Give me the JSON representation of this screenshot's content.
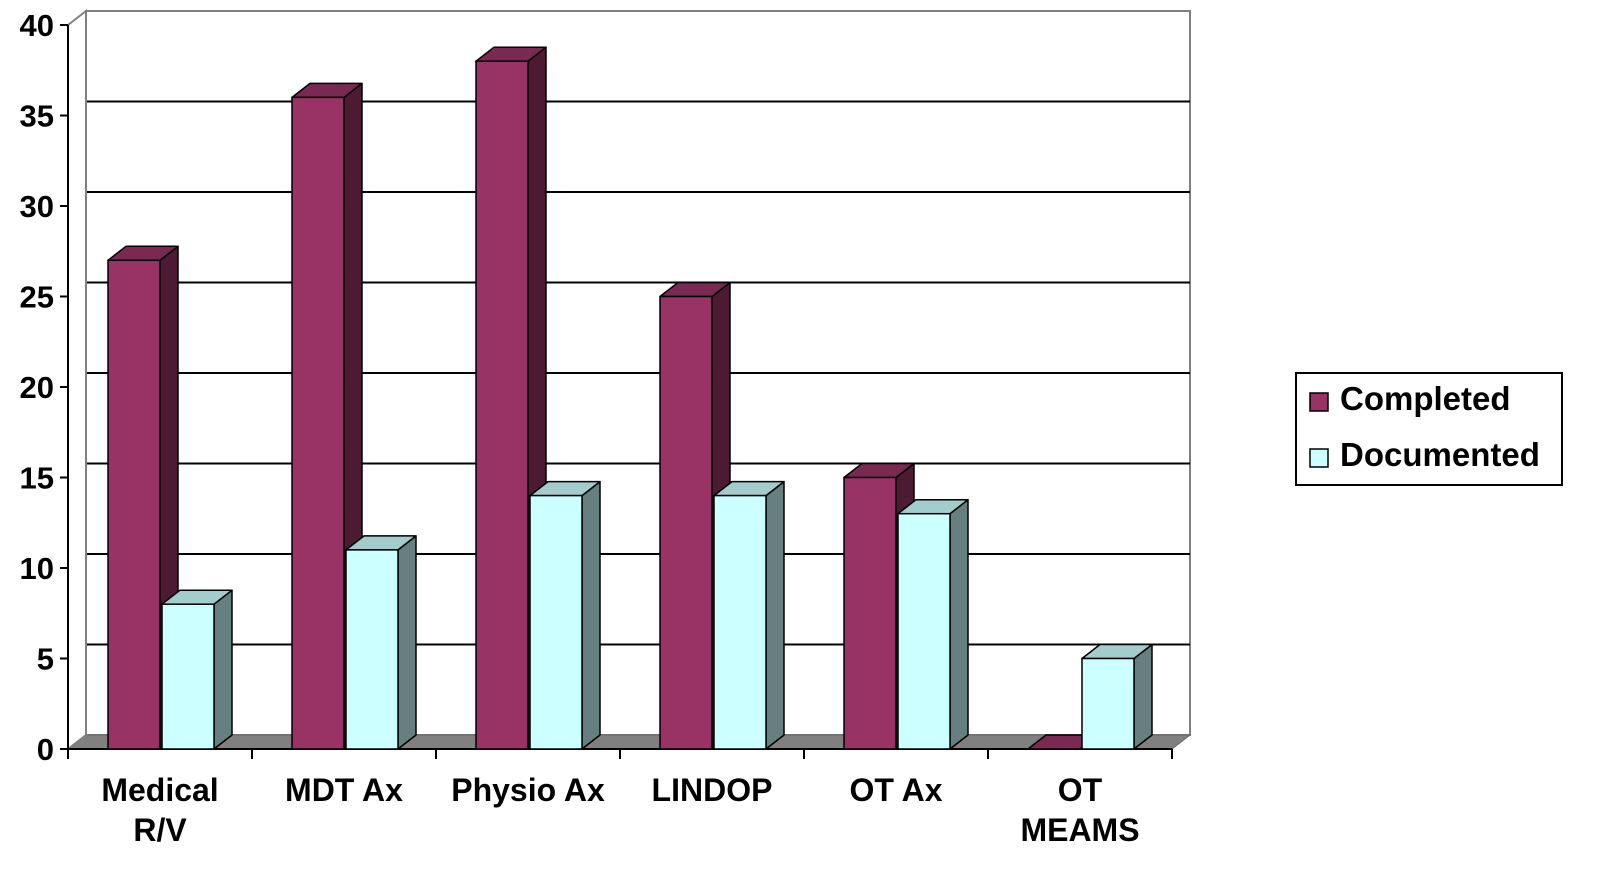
{
  "chart_data": {
    "type": "bar",
    "title": "",
    "xlabel": "",
    "ylabel": "",
    "ylim": [
      0,
      40
    ],
    "yticks": [
      "0",
      "5",
      "10",
      "15",
      "20",
      "25",
      "30",
      "35",
      "40"
    ],
    "categories": [
      [
        "Medical",
        "R/V"
      ],
      [
        "MDT Ax"
      ],
      [
        "Physio Ax"
      ],
      [
        "LINDOP"
      ],
      [
        "OT Ax"
      ],
      [
        "OT",
        "MEAMS"
      ]
    ],
    "series": [
      {
        "name": "Completed",
        "values": [
          27,
          36,
          38,
          25,
          15,
          0
        ]
      },
      {
        "name": "Documented",
        "values": [
          8,
          11,
          14,
          14,
          13,
          5
        ]
      }
    ],
    "grid": true,
    "three_d": true,
    "legend": "right",
    "colors": {
      "Completed": {
        "front": "#993366",
        "side": "#4D1A33",
        "top": "#7A2952"
      },
      "Documented": {
        "front": "#CCFFFF",
        "side": "#668080",
        "top": "#A3CCCC"
      },
      "floor": "#808080",
      "grid": "#000000",
      "wall": "#ffffff",
      "axis": "#808080"
    }
  }
}
